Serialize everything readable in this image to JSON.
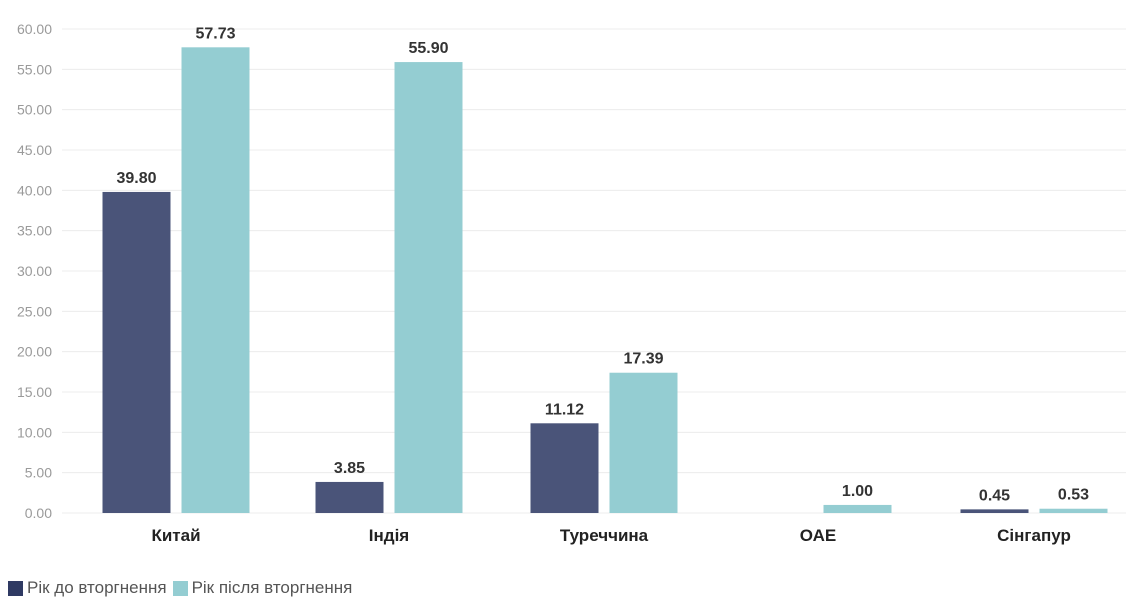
{
  "chart_data": {
    "type": "bar",
    "categories": [
      "Китай",
      "Індія",
      "Туреччина",
      "ОАЕ",
      "Сінгапур"
    ],
    "series": [
      {
        "name": "Рік до вторгнення",
        "color": "#4a5479",
        "values": [
          39.8,
          3.85,
          11.12,
          null,
          0.45
        ],
        "labels": [
          "39.80",
          "3.85",
          "11.12",
          "",
          "0.45"
        ]
      },
      {
        "name": "Рік після вторгнення",
        "color": "#94cdd2",
        "values": [
          57.73,
          55.9,
          17.39,
          1.0,
          0.53
        ],
        "labels": [
          "57.73",
          "55.90",
          "17.39",
          "1.00",
          "0.53"
        ]
      }
    ],
    "yticks": [
      "0.00",
      "5.00",
      "10.00",
      "15.00",
      "20.00",
      "25.00",
      "30.00",
      "35.00",
      "40.00",
      "45.00",
      "50.00",
      "55.00",
      "60.00"
    ],
    "ylim": [
      0,
      62
    ],
    "grid": true,
    "legend_position": "bottom-left",
    "title": "",
    "xlabel": "",
    "ylabel": ""
  }
}
